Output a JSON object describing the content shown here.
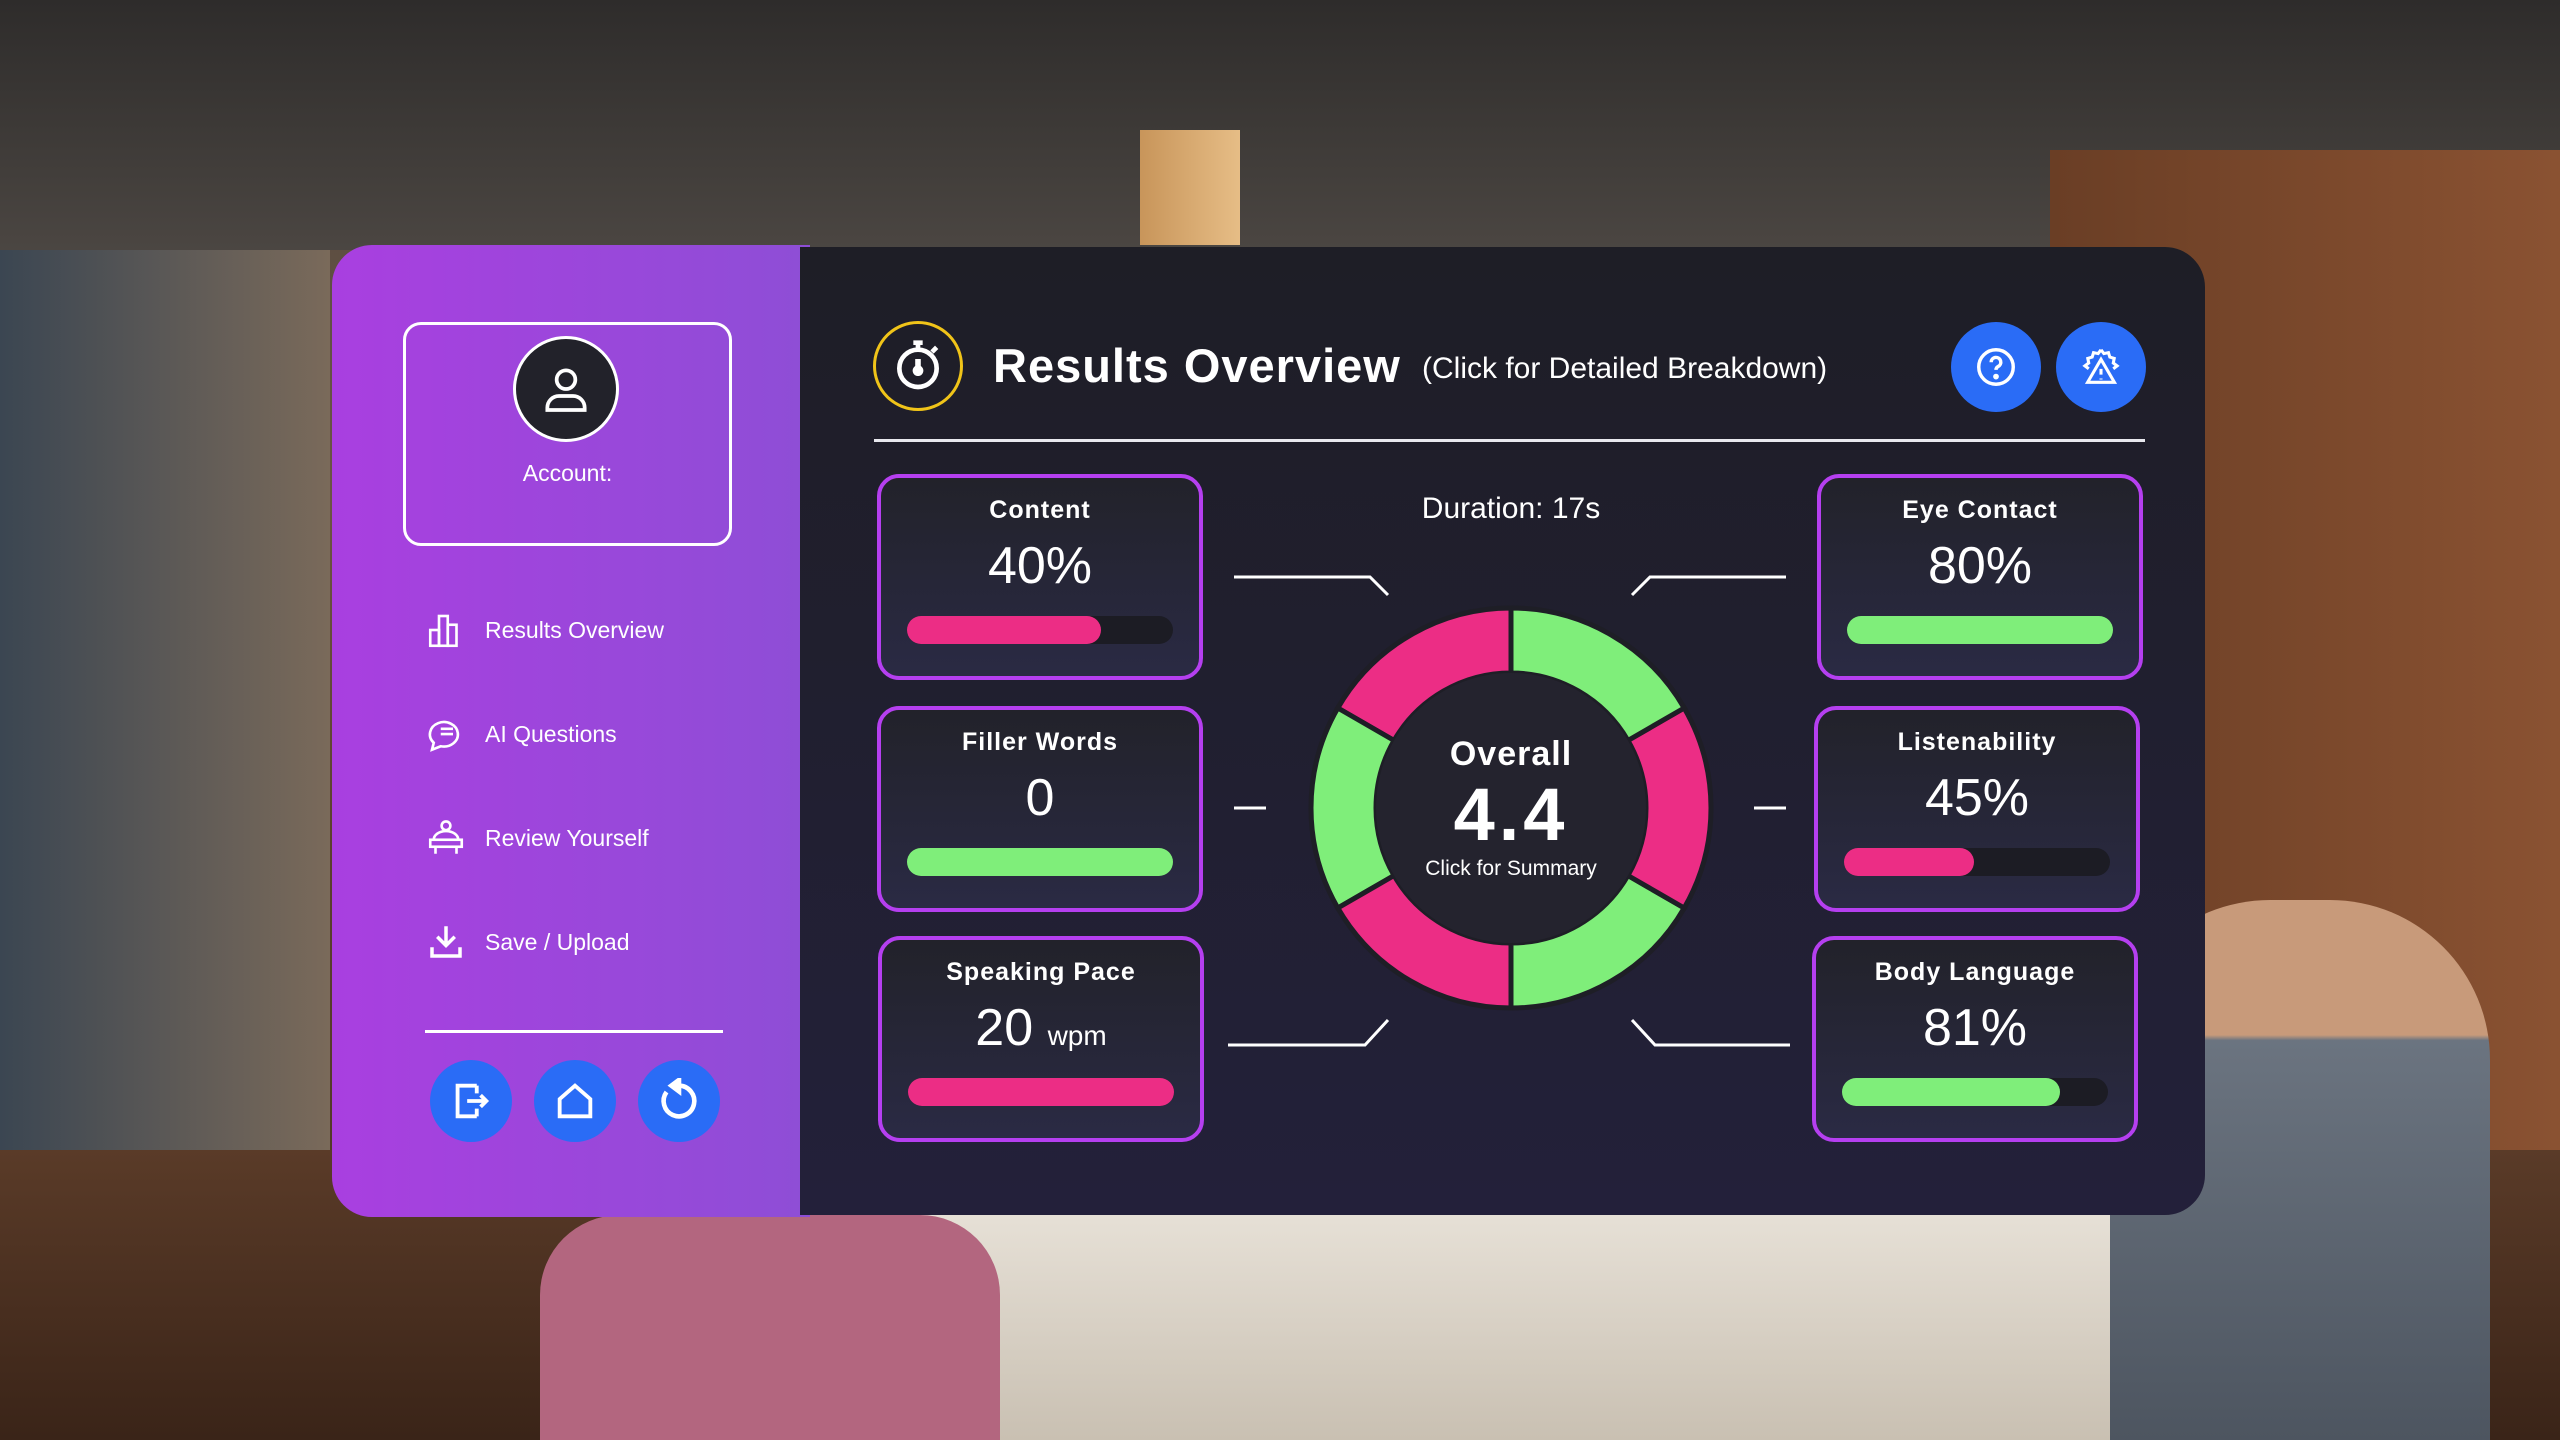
{
  "sidebar": {
    "account_label": "Account:",
    "items": [
      {
        "label": "Results Overview",
        "icon": "bar-chart-icon"
      },
      {
        "label": "AI Questions",
        "icon": "chat-icon"
      },
      {
        "label": "Review Yourself",
        "icon": "presenter-icon"
      },
      {
        "label": "Save / Upload",
        "icon": "download-icon"
      }
    ],
    "buttons": [
      {
        "icon": "exit-icon"
      },
      {
        "icon": "home-icon"
      },
      {
        "icon": "refresh-icon"
      }
    ]
  },
  "header": {
    "title": "Results Overview",
    "subtitle": "(Click for Detailed Breakdown)",
    "icons": [
      "stopwatch-icon",
      "help-icon",
      "settings-warning-icon"
    ]
  },
  "duration": "Duration: 17s",
  "overall": {
    "label": "Overall",
    "score": "4.4",
    "hint": "Click for Summary"
  },
  "metrics": {
    "content": {
      "title": "Content",
      "value": "40%",
      "progress": 0.73,
      "color": "#ec2d85"
    },
    "filler_words": {
      "title": "Filler Words",
      "value": "0",
      "progress": 1.0,
      "color": "#7fee7a"
    },
    "speaking_pace": {
      "title": "Speaking Pace",
      "value": "20",
      "unit": "wpm",
      "progress": 1.0,
      "color": "#ec2d85"
    },
    "eye_contact": {
      "title": "Eye Contact",
      "value": "80%",
      "progress": 1.0,
      "color": "#7fee7a"
    },
    "listenability": {
      "title": "Listenability",
      "value": "45%",
      "progress": 0.49,
      "color": "#ec2d85"
    },
    "body_language": {
      "title": "Body Language",
      "value": "81%",
      "progress": 0.82,
      "color": "#7fee7a"
    }
  },
  "donut_segments": [
    "#7fee7a",
    "#ec2d85",
    "#7fee7a",
    "#ec2d85",
    "#7fee7a",
    "#ec2d85"
  ],
  "colors": {
    "accent_purple": "#a93fe0",
    "button_blue": "#2a6cf6",
    "good": "#7fee7a",
    "bad": "#ec2d85",
    "stopwatch_ring": "#f0c419"
  }
}
